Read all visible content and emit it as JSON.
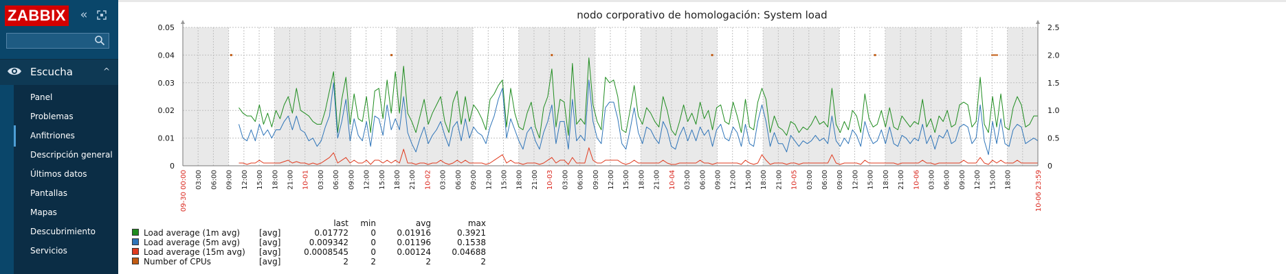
{
  "app": {
    "logo": "ZABBIX",
    "search_placeholder": ""
  },
  "header_icons": [
    "collapse-sidebar-icon",
    "kiosk-mode-icon"
  ],
  "menu": {
    "section": {
      "label": "Escucha",
      "icon": "eye-icon"
    },
    "items": [
      {
        "label": "Panel"
      },
      {
        "label": "Problemas"
      },
      {
        "label": "Anfitriones",
        "active": true
      },
      {
        "label": "Descripción general"
      },
      {
        "label": "Últimos datos"
      },
      {
        "label": "Pantallas"
      },
      {
        "label": "Mapas"
      },
      {
        "label": "Descubrimiento"
      },
      {
        "label": "Servicios"
      }
    ]
  },
  "graph": {
    "title": "nodo corporativo de homologación: System load",
    "x_start_label": "09-30 00:00",
    "x_end_label": "10-06 23:59",
    "day_labels": [
      "10-01",
      "10-02",
      "10-03",
      "10-04",
      "10-05",
      "10-06"
    ],
    "hour_labels": [
      "03:00",
      "06:00",
      "09:00",
      "12:00",
      "15:00",
      "18:00",
      "21:00"
    ],
    "colors": {
      "green": "#1f8c1f",
      "blue": "#2e74b8",
      "red": "#e03a1e",
      "cpu": "#c25b12",
      "night": "#e9e9e9",
      "grid": "#bfbfbf"
    }
  },
  "chart_data": {
    "type": "line",
    "title": "nodo corporativo de homologación: System load",
    "x_range": [
      "09-30 00:00",
      "10-06 23:59"
    ],
    "y_left_ticks": [
      "0",
      "0.01",
      "0.02",
      "0.03",
      "0.04",
      "0.05"
    ],
    "y_right_ticks": [
      "0",
      "0.5",
      "1.0",
      "1.5",
      "2.0",
      "2.5"
    ],
    "ylim_left": [
      0,
      0.05
    ],
    "ylim_right": [
      0,
      2.5
    ],
    "grid": true,
    "legend_position": "bottom-left",
    "series": [
      {
        "name": "Load average (1m avg)",
        "axis": "left",
        "color": "#1f8c1f",
        "values": [
          0.021,
          0.019,
          0.018,
          0.018,
          0.016,
          0.022,
          0.015,
          0.019,
          0.014,
          0.02,
          0.017,
          0.022,
          0.025,
          0.019,
          0.028,
          0.02,
          0.019,
          0.018,
          0.016,
          0.015,
          0.015,
          0.02,
          0.027,
          0.034,
          0.012,
          0.024,
          0.032,
          0.015,
          0.026,
          0.017,
          0.016,
          0.025,
          0.012,
          0.027,
          0.028,
          0.017,
          0.031,
          0.019,
          0.034,
          0.019,
          0.036,
          0.019,
          0.016,
          0.012,
          0.018,
          0.024,
          0.015,
          0.019,
          0.022,
          0.025,
          0.016,
          0.012,
          0.023,
          0.027,
          0.015,
          0.025,
          0.016,
          0.022,
          0.02,
          0.017,
          0.013,
          0.024,
          0.026,
          0.029,
          0.031,
          0.014,
          0.028,
          0.019,
          0.014,
          0.013,
          0.019,
          0.023,
          0.014,
          0.01,
          0.021,
          0.025,
          0.035,
          0.014,
          0.024,
          0.023,
          0.011,
          0.037,
          0.015,
          0.017,
          0.015,
          0.039,
          0.022,
          0.016,
          0.013,
          0.032,
          0.03,
          0.031,
          0.025,
          0.013,
          0.012,
          0.02,
          0.029,
          0.018,
          0.015,
          0.021,
          0.019,
          0.016,
          0.014,
          0.025,
          0.02,
          0.013,
          0.011,
          0.016,
          0.022,
          0.016,
          0.019,
          0.015,
          0.023,
          0.017,
          0.02,
          0.013,
          0.021,
          0.022,
          0.016,
          0.015,
          0.023,
          0.018,
          0.012,
          0.024,
          0.014,
          0.013,
          0.023,
          0.028,
          0.024,
          0.012,
          0.018,
          0.014,
          0.013,
          0.011,
          0.016,
          0.015,
          0.012,
          0.014,
          0.013,
          0.015,
          0.018,
          0.015,
          0.016,
          0.014,
          0.028,
          0.015,
          0.012,
          0.016,
          0.013,
          0.02,
          0.018,
          0.012,
          0.026,
          0.017,
          0.014,
          0.015,
          0.02,
          0.014,
          0.021,
          0.014,
          0.013,
          0.018,
          0.016,
          0.014,
          0.016,
          0.015,
          0.024,
          0.014,
          0.017,
          0.012,
          0.018,
          0.016,
          0.02,
          0.014,
          0.015,
          0.022,
          0.023,
          0.022,
          0.014,
          0.016,
          0.032,
          0.015,
          0.012,
          0.025,
          0.014,
          0.026,
          0.014,
          0.013,
          0.021,
          0.025,
          0.022,
          0.014,
          0.015,
          0.018,
          0.018
        ]
      },
      {
        "name": "Load average (5m avg)",
        "axis": "left",
        "color": "#2e74b8",
        "values": [
          0.015,
          0.01,
          0.009,
          0.013,
          0.009,
          0.015,
          0.011,
          0.013,
          0.01,
          0.013,
          0.013,
          0.016,
          0.018,
          0.013,
          0.018,
          0.013,
          0.012,
          0.009,
          0.01,
          0.007,
          0.009,
          0.014,
          0.018,
          0.03,
          0.01,
          0.016,
          0.024,
          0.009,
          0.017,
          0.011,
          0.009,
          0.016,
          0.007,
          0.018,
          0.017,
          0.011,
          0.022,
          0.013,
          0.017,
          0.013,
          0.025,
          0.012,
          0.008,
          0.005,
          0.01,
          0.014,
          0.008,
          0.011,
          0.013,
          0.016,
          0.011,
          0.007,
          0.014,
          0.016,
          0.009,
          0.017,
          0.01,
          0.014,
          0.012,
          0.011,
          0.008,
          0.014,
          0.018,
          0.024,
          0.028,
          0.01,
          0.017,
          0.013,
          0.009,
          0.006,
          0.012,
          0.014,
          0.009,
          0.006,
          0.012,
          0.016,
          0.022,
          0.008,
          0.016,
          0.016,
          0.006,
          0.024,
          0.009,
          0.011,
          0.009,
          0.031,
          0.016,
          0.01,
          0.008,
          0.021,
          0.023,
          0.023,
          0.017,
          0.008,
          0.006,
          0.013,
          0.021,
          0.012,
          0.008,
          0.014,
          0.013,
          0.01,
          0.008,
          0.016,
          0.013,
          0.007,
          0.006,
          0.011,
          0.014,
          0.009,
          0.013,
          0.009,
          0.014,
          0.011,
          0.013,
          0.007,
          0.013,
          0.015,
          0.01,
          0.009,
          0.014,
          0.012,
          0.007,
          0.015,
          0.008,
          0.007,
          0.016,
          0.022,
          0.016,
          0.007,
          0.012,
          0.008,
          0.008,
          0.005,
          0.011,
          0.009,
          0.007,
          0.009,
          0.008,
          0.009,
          0.011,
          0.009,
          0.01,
          0.008,
          0.018,
          0.009,
          0.007,
          0.01,
          0.008,
          0.013,
          0.011,
          0.007,
          0.016,
          0.011,
          0.008,
          0.009,
          0.013,
          0.008,
          0.014,
          0.008,
          0.007,
          0.011,
          0.01,
          0.008,
          0.01,
          0.009,
          0.015,
          0.008,
          0.011,
          0.006,
          0.011,
          0.01,
          0.013,
          0.008,
          0.009,
          0.014,
          0.015,
          0.014,
          0.008,
          0.01,
          0.022,
          0.009,
          0.004,
          0.016,
          0.008,
          0.017,
          0.008,
          0.007,
          0.013,
          0.015,
          0.014,
          0.008,
          0.009,
          0.01,
          0.009
        ]
      },
      {
        "name": "Load average (15m avg)",
        "axis": "left",
        "color": "#e03a1e",
        "values": [
          0.001,
          0.001,
          0.0005,
          0.001,
          0.001,
          0.002,
          0.001,
          0.001,
          0.001,
          0.001,
          0.001,
          0.0015,
          0.002,
          0.001,
          0.0015,
          0.001,
          0.001,
          0.0005,
          0.001,
          0.0005,
          0.001,
          0.002,
          0.003,
          0.0047,
          0.001,
          0.002,
          0.003,
          0.001,
          0.002,
          0.001,
          0.001,
          0.002,
          0.0005,
          0.002,
          0.002,
          0.001,
          0.002,
          0.001,
          0.002,
          0.001,
          0.006,
          0.001,
          0.001,
          0.0005,
          0.001,
          0.001,
          0.0005,
          0.001,
          0.001,
          0.002,
          0.001,
          0.0005,
          0.001,
          0.002,
          0.001,
          0.002,
          0.001,
          0.001,
          0.001,
          0.001,
          0.0005,
          0.001,
          0.002,
          0.003,
          0.004,
          0.001,
          0.002,
          0.001,
          0.001,
          0.0005,
          0.001,
          0.001,
          0.001,
          0.0005,
          0.001,
          0.002,
          0.003,
          0.001,
          0.002,
          0.002,
          0.0005,
          0.003,
          0.001,
          0.001,
          0.001,
          0.0065,
          0.002,
          0.001,
          0.001,
          0.002,
          0.002,
          0.002,
          0.002,
          0.001,
          0.0005,
          0.001,
          0.002,
          0.001,
          0.001,
          0.001,
          0.001,
          0.001,
          0.001,
          0.002,
          0.001,
          0.0005,
          0.0005,
          0.001,
          0.001,
          0.001,
          0.001,
          0.001,
          0.002,
          0.001,
          0.001,
          0.0005,
          0.001,
          0.001,
          0.001,
          0.001,
          0.001,
          0.001,
          0.0005,
          0.002,
          0.001,
          0.0005,
          0.001,
          0.004,
          0.002,
          0.0005,
          0.001,
          0.001,
          0.001,
          0.0005,
          0.001,
          0.001,
          0.0005,
          0.001,
          0.001,
          0.001,
          0.001,
          0.001,
          0.001,
          0.001,
          0.004,
          0.001,
          0.0005,
          0.001,
          0.001,
          0.001,
          0.001,
          0.0005,
          0.002,
          0.001,
          0.001,
          0.001,
          0.001,
          0.001,
          0.001,
          0.001,
          0.0005,
          0.001,
          0.001,
          0.001,
          0.001,
          0.001,
          0.002,
          0.001,
          0.001,
          0.0005,
          0.001,
          0.001,
          0.001,
          0.001,
          0.001,
          0.001,
          0.002,
          0.001,
          0.001,
          0.001,
          0.003,
          0.001,
          0.0005,
          0.002,
          0.001,
          0.002,
          0.001,
          0.001,
          0.001,
          0.002,
          0.001,
          0.001,
          0.001,
          0.001,
          0.001
        ]
      },
      {
        "name": "Number of CPUs",
        "axis": "right",
        "color": "#c25b12",
        "display": "points",
        "value": 2
      }
    ],
    "legend": [
      {
        "name": "Load average (1m avg)",
        "color": "#1f8c1f",
        "func": "[avg]",
        "last": "0.01772",
        "min": "0",
        "avg": "0.01916",
        "max": "0.3921"
      },
      {
        "name": "Load average (5m avg)",
        "color": "#2e74b8",
        "func": "[avg]",
        "last": "0.009342",
        "min": "0",
        "avg": "0.01196",
        "max": "0.1538"
      },
      {
        "name": "Load average (15m avg)",
        "color": "#e03a1e",
        "func": "[avg]",
        "last": "0.0008545",
        "min": "0",
        "avg": "0.00124",
        "max": "0.04688"
      },
      {
        "name": "Number of CPUs",
        "color": "#c25b12",
        "func": "[avg]",
        "last": "2",
        "min": "2",
        "avg": "2",
        "max": "2"
      }
    ],
    "legend_headers": {
      "last": "last",
      "min": "min",
      "avg": "avg",
      "max": "max"
    }
  }
}
